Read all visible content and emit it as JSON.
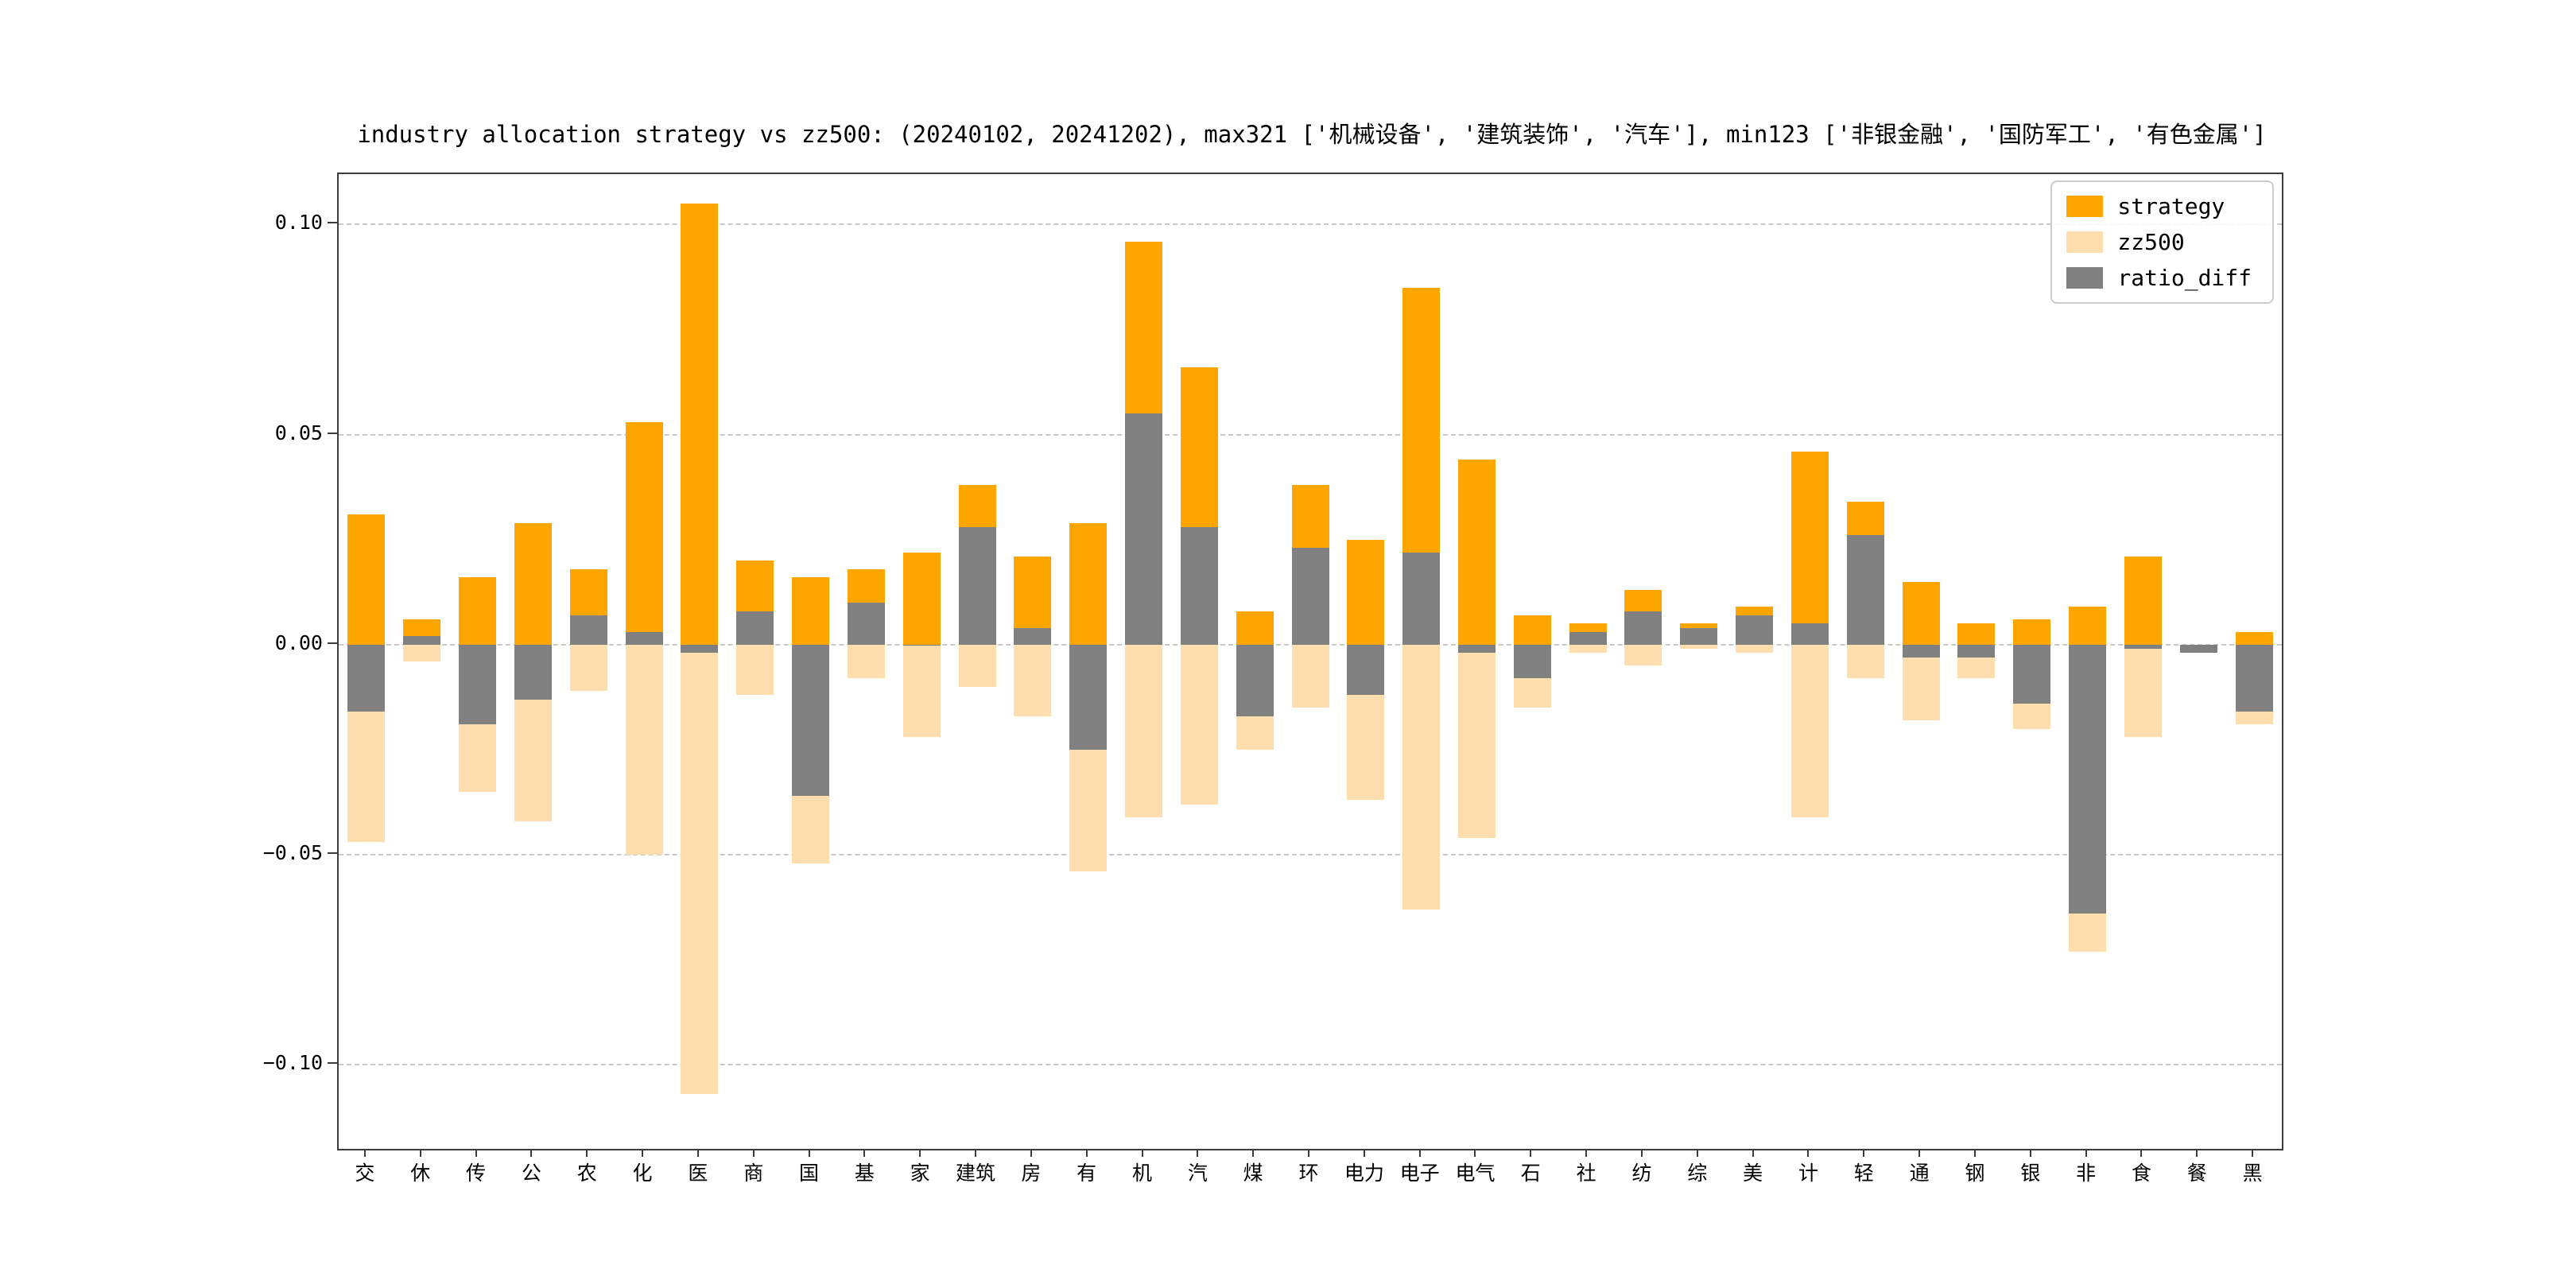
{
  "chart_data": {
    "type": "bar",
    "title": "industry allocation strategy vs zz500: (20240102, 20241202), max321 ['机械设备', '建筑装饰', '汽车'], min123 ['非银金融', '国防军工', '有色金属']",
    "categories": [
      "交",
      "休",
      "传",
      "公",
      "农",
      "化",
      "医",
      "商",
      "国",
      "基",
      "家",
      "建筑",
      "房",
      "有",
      "机",
      "汽",
      "煤",
      "环",
      "电力",
      "电子",
      "电气",
      "石",
      "社",
      "纺",
      "综",
      "美",
      "计",
      "轻",
      "通",
      "钢",
      "银",
      "非",
      "食",
      "餐",
      "黑"
    ],
    "series": [
      {
        "name": "strategy",
        "color": "#FFA500",
        "values": [
          0.031,
          0.006,
          0.016,
          0.029,
          0.018,
          0.053,
          0.105,
          0.02,
          0.016,
          0.018,
          0.022,
          0.038,
          0.021,
          0.029,
          0.096,
          0.066,
          0.008,
          0.038,
          0.025,
          0.085,
          0.044,
          0.007,
          0.005,
          0.013,
          0.005,
          0.009,
          0.046,
          0.034,
          0.015,
          0.005,
          0.006,
          0.009,
          0.021,
          0.0,
          0.003
        ]
      },
      {
        "name": "zz500",
        "color": "#FFDEAD",
        "values": [
          -0.047,
          -0.004,
          -0.035,
          -0.042,
          -0.011,
          -0.05,
          -0.107,
          -0.012,
          -0.052,
          -0.008,
          -0.022,
          -0.01,
          -0.017,
          -0.054,
          -0.041,
          -0.038,
          -0.025,
          -0.015,
          -0.037,
          -0.063,
          -0.046,
          -0.015,
          -0.002,
          -0.005,
          -0.001,
          -0.002,
          -0.041,
          -0.008,
          -0.018,
          -0.008,
          -0.02,
          -0.073,
          -0.022,
          -0.002,
          -0.019
        ]
      },
      {
        "name": "ratio_diff",
        "color": "#808080",
        "values": [
          -0.016,
          0.002,
          -0.019,
          -0.013,
          0.007,
          0.003,
          -0.002,
          0.008,
          -0.036,
          0.01,
          0.0,
          0.028,
          0.004,
          -0.025,
          0.055,
          0.028,
          -0.017,
          0.023,
          -0.012,
          0.022,
          -0.002,
          -0.008,
          0.003,
          0.008,
          0.004,
          0.007,
          0.005,
          0.026,
          -0.003,
          -0.003,
          -0.014,
          -0.064,
          -0.001,
          -0.002,
          -0.016
        ]
      }
    ],
    "ylim": [
      -0.12,
      0.112
    ],
    "yticks": [
      0.1,
      0.05,
      0.0,
      -0.05,
      -0.1
    ],
    "grid": "horizontal-dashed",
    "legend_position": "upper-right",
    "xlabel": "",
    "ylabel": ""
  }
}
